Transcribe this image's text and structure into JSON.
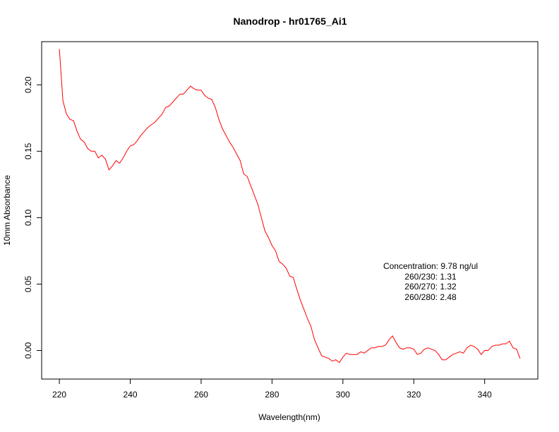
{
  "chart_data": {
    "type": "line",
    "title": "Nanodrop - hr01765_Ai1",
    "xlabel": "Wavelength(nm)",
    "ylabel": "10mm Absorbance",
    "xlim": [
      215,
      355
    ],
    "ylim": [
      -0.0215,
      0.2325
    ],
    "x_ticks": [
      220,
      240,
      260,
      280,
      300,
      320,
      340
    ],
    "y_ticks": [
      0.0,
      0.05,
      0.1,
      0.15,
      0.2
    ],
    "y_tick_labels": [
      "0.00",
      "0.05",
      "0.10",
      "0.15",
      "0.20"
    ],
    "grid": false,
    "line_color": "#ff0000",
    "series": [
      {
        "x": [
          220,
          221,
          222,
          223,
          224,
          225,
          226,
          227,
          228,
          229,
          230,
          231,
          232,
          233,
          234,
          235,
          236,
          237,
          238,
          239,
          240,
          241,
          242,
          243,
          244,
          245,
          246,
          247,
          248,
          249,
          250,
          251,
          252,
          253,
          254,
          255,
          256,
          257,
          258,
          259,
          260,
          261,
          262,
          263,
          264,
          265,
          266,
          267,
          268,
          269,
          270,
          271,
          272,
          273,
          274,
          275,
          276,
          277,
          278,
          279,
          280,
          281,
          282,
          283,
          284,
          285,
          286,
          287,
          288,
          289,
          290,
          291,
          292,
          293,
          294,
          295,
          296,
          297,
          298,
          299,
          300,
          301,
          302,
          303,
          304,
          305,
          306,
          307,
          308,
          309,
          310,
          311,
          312,
          313,
          314,
          315,
          316,
          317,
          318,
          319,
          320,
          321,
          322,
          323,
          324,
          325,
          326,
          327,
          328,
          329,
          330,
          331,
          332,
          333,
          334,
          335,
          336,
          337,
          338,
          339,
          340,
          341,
          342,
          343,
          344,
          345,
          346,
          347,
          348,
          349,
          350
        ],
        "values": [
          0.227,
          0.188,
          0.178,
          0.174,
          0.173,
          0.165,
          0.159,
          0.157,
          0.152,
          0.15,
          0.15,
          0.145,
          0.147,
          0.144,
          0.136,
          0.139,
          0.143,
          0.141,
          0.145,
          0.15,
          0.154,
          0.155,
          0.158,
          0.162,
          0.165,
          0.168,
          0.17,
          0.172,
          0.175,
          0.178,
          0.183,
          0.184,
          0.187,
          0.19,
          0.193,
          0.193,
          0.196,
          0.199,
          0.197,
          0.196,
          0.196,
          0.192,
          0.19,
          0.189,
          0.183,
          0.174,
          0.167,
          0.162,
          0.157,
          0.153,
          0.148,
          0.143,
          0.133,
          0.131,
          0.124,
          0.117,
          0.11,
          0.1,
          0.09,
          0.085,
          0.079,
          0.075,
          0.067,
          0.065,
          0.062,
          0.056,
          0.055,
          0.046,
          0.038,
          0.031,
          0.024,
          0.018,
          0.008,
          0.002,
          -0.004,
          -0.005,
          -0.006,
          -0.008,
          -0.007,
          -0.009,
          -0.005,
          -0.002,
          -0.003,
          -0.003,
          -0.003,
          -0.001,
          -0.002,
          0.0,
          0.002,
          0.002,
          0.003,
          0.003,
          0.004,
          0.008,
          0.011,
          0.006,
          0.002,
          0.001,
          0.002,
          0.002,
          0.001,
          -0.003,
          -0.002,
          0.001,
          0.002,
          0.001,
          0.0,
          -0.003,
          -0.007,
          -0.007,
          -0.005,
          -0.003,
          -0.002,
          -0.001,
          -0.002,
          0.002,
          0.004,
          0.003,
          0.001,
          -0.003,
          0.0,
          0.0,
          0.003,
          0.004,
          0.004,
          0.005,
          0.005,
          0.007,
          0.002,
          0.001,
          -0.006
        ]
      }
    ],
    "annotations": [
      "Concentration: 9.78 ng/ul",
      "260/230: 1.31",
      "260/270: 1.32",
      "260/280: 2.48"
    ]
  }
}
